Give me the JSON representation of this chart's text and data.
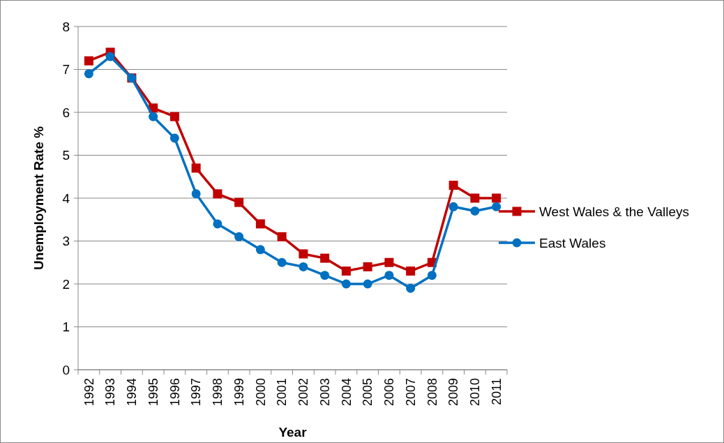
{
  "chart_data": {
    "type": "line",
    "xlabel": "Year",
    "ylabel": "Unemployment Rate %",
    "categories": [
      "1992",
      "1993",
      "1994",
      "1995",
      "1996",
      "1997",
      "1998",
      "1999",
      "2000",
      "2001",
      "2002",
      "2003",
      "2004",
      "2005",
      "2006",
      "2007",
      "2008",
      "2009",
      "2010",
      "2011"
    ],
    "series": [
      {
        "name": "West Wales & the Valleys",
        "color": "#c00000",
        "marker": "square",
        "values": [
          7.2,
          7.4,
          6.8,
          6.1,
          5.9,
          4.7,
          4.1,
          3.9,
          3.4,
          3.1,
          2.7,
          2.6,
          2.3,
          2.4,
          2.5,
          2.3,
          2.5,
          4.3,
          4.0,
          4.0
        ]
      },
      {
        "name": "East Wales",
        "color": "#0070c0",
        "marker": "circle",
        "values": [
          6.9,
          7.3,
          6.8,
          5.9,
          5.4,
          4.1,
          3.4,
          3.1,
          2.8,
          2.5,
          2.4,
          2.2,
          2.0,
          2.0,
          2.2,
          1.9,
          2.2,
          3.8,
          3.7,
          3.8
        ]
      }
    ],
    "ylim": [
      0,
      8
    ],
    "yticks": [
      0,
      1,
      2,
      3,
      4,
      5,
      6,
      7,
      8
    ],
    "grid": "y",
    "legend": "right"
  }
}
